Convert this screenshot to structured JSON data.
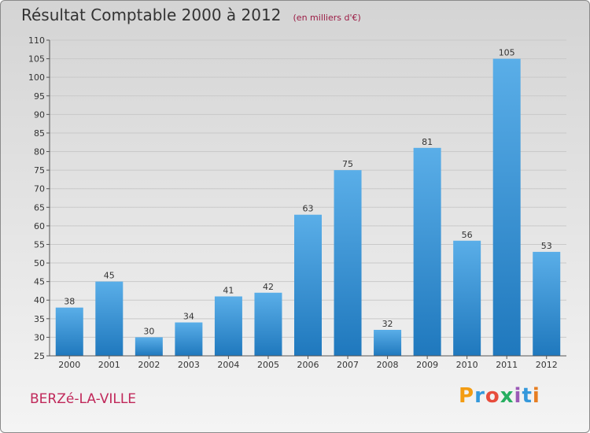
{
  "header": {
    "title": "Résultat Comptable 2000 à 2012",
    "subtitle": "(en milliers d'€)"
  },
  "footer": {
    "commune": "BERZé-LA-VILLE",
    "logo_text": "Proxiti",
    "logo_colors": [
      "#f39c12",
      "#3498db",
      "#e74c3c",
      "#27ae60",
      "#9b59b6",
      "#3498db",
      "#e67e22"
    ]
  },
  "chart_data": {
    "type": "bar",
    "categories": [
      "2000",
      "2001",
      "2002",
      "2003",
      "2004",
      "2005",
      "2006",
      "2007",
      "2008",
      "2009",
      "2010",
      "2011",
      "2012"
    ],
    "values": [
      38,
      45,
      30,
      34,
      41,
      42,
      63,
      75,
      32,
      81,
      56,
      105,
      53
    ],
    "data_labels": [
      "38",
      "45",
      "30",
      "34",
      "41",
      "42",
      "63",
      "75",
      "32",
      "81",
      "56",
      "105",
      "53"
    ],
    "ylim": [
      25,
      110
    ],
    "yticks": [
      25,
      30,
      35,
      40,
      45,
      50,
      55,
      60,
      65,
      70,
      75,
      80,
      85,
      90,
      95,
      100,
      105,
      110
    ],
    "grid": true,
    "bar_color": "#4aa3e0"
  }
}
